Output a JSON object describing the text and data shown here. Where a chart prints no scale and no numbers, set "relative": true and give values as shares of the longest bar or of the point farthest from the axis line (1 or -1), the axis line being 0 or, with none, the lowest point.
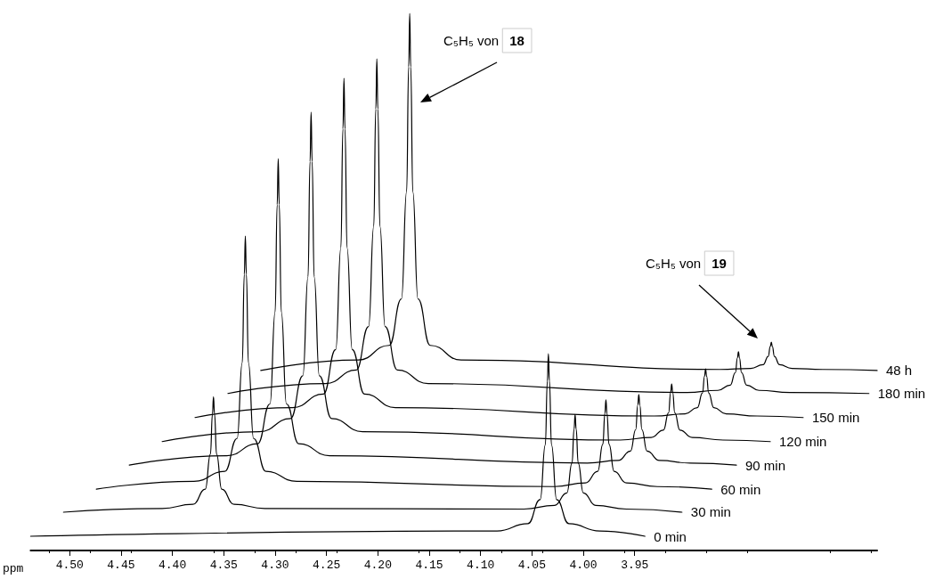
{
  "chart_data": {
    "type": "line",
    "relative": true,
    "xlabel": "ppm",
    "legend": false,
    "grid": false,
    "marker": "none",
    "line_style": "solid",
    "xlim": [
      4.538,
      3.714
    ],
    "xticks": [
      {
        "value": 4.5,
        "label": "4.50"
      },
      {
        "value": 4.45,
        "label": "4.45"
      },
      {
        "value": 4.4,
        "label": "4.40"
      },
      {
        "value": 4.35,
        "label": "4.35"
      },
      {
        "value": 4.3,
        "label": "4.30"
      },
      {
        "value": 4.25,
        "label": "4.25"
      },
      {
        "value": 4.2,
        "label": "4.20"
      },
      {
        "value": 4.15,
        "label": "4.15"
      },
      {
        "value": 4.1,
        "label": "4.10"
      },
      {
        "value": 4.05,
        "label": "4.05"
      },
      {
        "value": 4.0,
        "label": "4.00"
      },
      {
        "value": 3.95,
        "label": "3.95"
      }
    ],
    "annotations": [
      "C₅H₅ von 18",
      "C₅H₅ von 19"
    ],
    "series": [
      {
        "name": "0 min",
        "color": "#000000",
        "x": [
          4.538,
          4.084,
          4.054,
          4.042,
          4.037,
          4.035,
          4.034,
          4.033,
          4.031,
          4.026,
          4.014,
          3.984,
          3.94
        ],
        "values": [
          0,
          0.01,
          0.024,
          0.07,
          0.175,
          0.297,
          0.349,
          0.297,
          0.175,
          0.07,
          0.024,
          0.01,
          0
        ]
      },
      {
        "name": "30 min",
        "color": "#000000",
        "x": [
          4.506,
          4.41,
          4.38,
          4.368,
          4.363,
          4.361,
          4.36,
          4.359,
          4.357,
          4.352,
          4.34,
          4.31,
          4.058,
          4.028,
          4.016,
          4.011,
          4.009,
          4.008,
          4.007,
          4.005,
          4.0,
          3.988,
          3.958,
          3.904
        ],
        "values": [
          0.046,
          0.053,
          0.061,
          0.09,
          0.157,
          0.234,
          0.267,
          0.234,
          0.157,
          0.09,
          0.061,
          0.053,
          0.052,
          0.059,
          0.083,
          0.14,
          0.205,
          0.233,
          0.205,
          0.14,
          0.083,
          0.059,
          0.052,
          0.046
        ]
      },
      {
        "name": "60 min",
        "color": "#000000",
        "x": [
          4.474,
          4.379,
          4.349,
          4.337,
          4.332,
          4.33,
          4.329,
          4.328,
          4.326,
          4.321,
          4.309,
          4.279,
          4.028,
          3.998,
          3.986,
          3.981,
          3.979,
          3.978,
          3.977,
          3.975,
          3.97,
          3.958,
          3.928,
          3.875
        ],
        "values": [
          0.09,
          0.105,
          0.124,
          0.187,
          0.332,
          0.501,
          0.574,
          0.501,
          0.332,
          0.187,
          0.124,
          0.105,
          0.095,
          0.102,
          0.124,
          0.176,
          0.235,
          0.261,
          0.235,
          0.176,
          0.124,
          0.102,
          0.095,
          0.09
        ]
      },
      {
        "name": "90 min",
        "color": "#000000",
        "x": [
          4.442,
          4.347,
          4.317,
          4.305,
          4.3,
          4.298,
          4.297,
          4.296,
          4.294,
          4.289,
          4.277,
          4.247,
          3.996,
          3.966,
          3.954,
          3.949,
          3.947,
          3.946,
          3.945,
          3.943,
          3.938,
          3.926,
          3.896,
          3.851
        ],
        "values": [
          0.136,
          0.154,
          0.177,
          0.253,
          0.429,
          0.634,
          0.722,
          0.634,
          0.429,
          0.253,
          0.177,
          0.154,
          0.14,
          0.145,
          0.163,
          0.204,
          0.251,
          0.271,
          0.251,
          0.204,
          0.163,
          0.145,
          0.14,
          0.136
        ]
      },
      {
        "name": "120 min",
        "color": "#000000",
        "x": [
          4.41,
          4.315,
          4.285,
          4.273,
          4.268,
          4.266,
          4.265,
          4.264,
          4.262,
          4.257,
          4.245,
          4.215,
          3.964,
          3.934,
          3.922,
          3.917,
          3.915,
          3.914,
          3.913,
          3.911,
          3.906,
          3.894,
          3.864,
          3.818
        ],
        "values": [
          0.181,
          0.2,
          0.225,
          0.307,
          0.496,
          0.717,
          0.811,
          0.717,
          0.496,
          0.307,
          0.225,
          0.2,
          0.184,
          0.189,
          0.203,
          0.236,
          0.275,
          0.291,
          0.275,
          0.236,
          0.203,
          0.189,
          0.184,
          0.181
        ]
      },
      {
        "name": "150 min",
        "color": "#000000",
        "x": [
          4.378,
          4.283,
          4.253,
          4.241,
          4.236,
          4.234,
          4.233,
          4.232,
          4.23,
          4.225,
          4.213,
          4.183,
          3.931,
          3.901,
          3.889,
          3.884,
          3.882,
          3.881,
          3.88,
          3.878,
          3.873,
          3.861,
          3.831,
          3.786
        ],
        "values": [
          0.227,
          0.246,
          0.272,
          0.357,
          0.552,
          0.779,
          0.876,
          0.779,
          0.552,
          0.357,
          0.272,
          0.246,
          0.23,
          0.234,
          0.246,
          0.274,
          0.306,
          0.32,
          0.306,
          0.274,
          0.246,
          0.234,
          0.23,
          0.227
        ]
      },
      {
        "name": "180 min",
        "color": "#000000",
        "x": [
          4.346,
          4.251,
          4.221,
          4.209,
          4.204,
          4.202,
          4.201,
          4.2,
          4.198,
          4.193,
          4.181,
          4.151,
          3.899,
          3.869,
          3.857,
          3.852,
          3.85,
          3.849,
          3.848,
          3.846,
          3.841,
          3.829,
          3.799,
          3.722
        ],
        "values": [
          0.273,
          0.292,
          0.318,
          0.401,
          0.593,
          0.817,
          0.913,
          0.817,
          0.593,
          0.401,
          0.318,
          0.292,
          0.275,
          0.279,
          0.289,
          0.313,
          0.341,
          0.353,
          0.341,
          0.313,
          0.289,
          0.279,
          0.275,
          0.273
        ]
      },
      {
        "name": "48 h",
        "color": "#000000",
        "x": [
          4.314,
          4.219,
          4.189,
          4.177,
          4.172,
          4.17,
          4.169,
          4.168,
          4.166,
          4.161,
          4.149,
          4.119,
          3.867,
          3.837,
          3.825,
          3.82,
          3.818,
          3.817,
          3.816,
          3.814,
          3.809,
          3.797,
          3.767,
          3.714
        ],
        "values": [
          0.317,
          0.337,
          0.365,
          0.454,
          0.659,
          0.898,
          1.0,
          0.898,
          0.659,
          0.454,
          0.365,
          0.337,
          0.319,
          0.321,
          0.328,
          0.344,
          0.363,
          0.371,
          0.363,
          0.344,
          0.328,
          0.321,
          0.319,
          0.317
        ]
      }
    ]
  }
}
